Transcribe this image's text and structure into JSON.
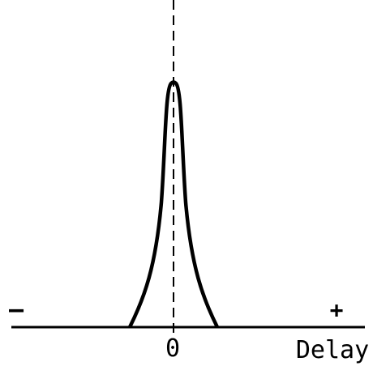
{
  "diagram": {
    "labels": {
      "minus": "–",
      "plus": "+",
      "zero": "0",
      "axis_label": "Delay"
    },
    "curve": {
      "shape": "symmetric peak centered at zero delay",
      "line_color": "#000000"
    },
    "center_line": {
      "style": "dashed",
      "color": "#000000"
    },
    "baseline": {
      "color": "#000000"
    }
  }
}
